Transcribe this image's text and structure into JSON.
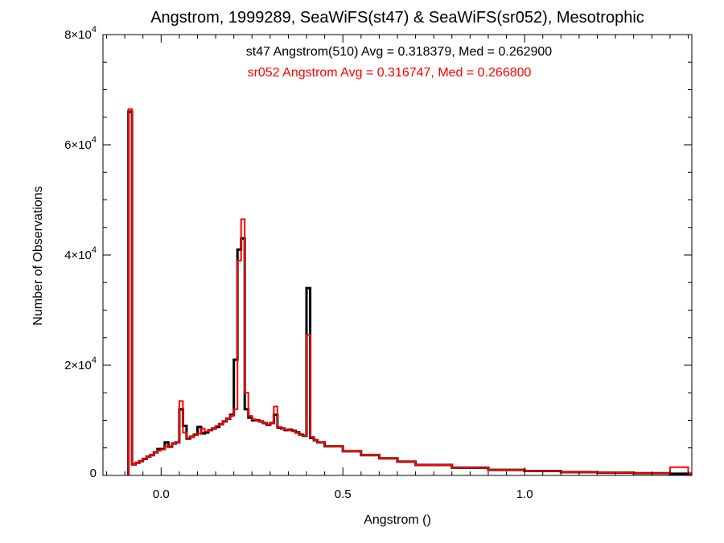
{
  "chart_data": {
    "type": "histogram",
    "title": "Angstrom, 1999289, SeaWiFS(st47) & SeaWiFS(sr052), Mesotrophic",
    "xlabel": "Angstrom ()",
    "ylabel": "Number of Observations",
    "xlim": [
      -0.16,
      1.46
    ],
    "ylim": [
      0,
      80000
    ],
    "x_ticks": [
      {
        "value": 0.0,
        "label": "0.0"
      },
      {
        "value": 0.5,
        "label": "0.5"
      },
      {
        "value": 1.0,
        "label": "1.0"
      }
    ],
    "y_ticks": [
      {
        "value": 0,
        "label": "0"
      },
      {
        "value": 20000,
        "mantissa": "2×10",
        "exponent": "4"
      },
      {
        "value": 40000,
        "mantissa": "4×10",
        "exponent": "4"
      },
      {
        "value": 60000,
        "mantissa": "6×10",
        "exponent": "4"
      },
      {
        "value": 80000,
        "mantissa": "8×10",
        "exponent": "4"
      }
    ],
    "bin_width": 0.01,
    "annotations": [
      {
        "text": "st47 Angstrom(510) Avg = 0.318379, Med = 0.262900",
        "color": "#000000"
      },
      {
        "text": "sr052 Angstrom Avg = 0.316747, Med = 0.266800",
        "color": "#ff0000"
      }
    ],
    "series": [
      {
        "color": "#000000",
        "x": [
          -0.09,
          -0.08,
          -0.07,
          -0.06,
          -0.05,
          -0.04,
          -0.03,
          -0.02,
          -0.01,
          0.0,
          0.01,
          0.02,
          0.03,
          0.04,
          0.05,
          0.06,
          0.07,
          0.08,
          0.09,
          0.1,
          0.11,
          0.12,
          0.13,
          0.14,
          0.15,
          0.16,
          0.17,
          0.18,
          0.19,
          0.2,
          0.21,
          0.22,
          0.23,
          0.24,
          0.25,
          0.26,
          0.27,
          0.28,
          0.29,
          0.3,
          0.31,
          0.32,
          0.33,
          0.34,
          0.35,
          0.36,
          0.37,
          0.38,
          0.39,
          0.4,
          0.41,
          0.42,
          0.43,
          0.45,
          0.5,
          0.55,
          0.6,
          0.65,
          0.7,
          0.8,
          0.9,
          1.0,
          1.1,
          1.2,
          1.3,
          1.4,
          1.45
        ],
        "values": [
          66000,
          2000,
          2300,
          2600,
          3000,
          3400,
          3700,
          4200,
          4800,
          4800,
          6000,
          5200,
          5800,
          6000,
          12000,
          9000,
          6700,
          7000,
          7400,
          8800,
          7600,
          7800,
          8200,
          8500,
          8800,
          9300,
          9800,
          10300,
          11000,
          21000,
          41000,
          43000,
          12000,
          10500,
          10000,
          10000,
          9800,
          9500,
          9200,
          9500,
          11000,
          8700,
          8500,
          8200,
          8300,
          8100,
          7800,
          7400,
          7200,
          34000,
          6800,
          6400,
          6000,
          5300,
          4400,
          3700,
          3100,
          2500,
          1900,
          1400,
          1000,
          800,
          600,
          500,
          400,
          300,
          300
        ]
      },
      {
        "color": "#ff0000",
        "x": [
          -0.09,
          -0.08,
          -0.07,
          -0.06,
          -0.05,
          -0.04,
          -0.03,
          -0.02,
          -0.01,
          0.0,
          0.01,
          0.02,
          0.03,
          0.04,
          0.05,
          0.06,
          0.07,
          0.08,
          0.09,
          0.1,
          0.11,
          0.12,
          0.13,
          0.14,
          0.15,
          0.16,
          0.17,
          0.18,
          0.19,
          0.2,
          0.21,
          0.22,
          0.23,
          0.24,
          0.25,
          0.26,
          0.27,
          0.28,
          0.29,
          0.3,
          0.31,
          0.32,
          0.33,
          0.34,
          0.35,
          0.36,
          0.37,
          0.38,
          0.39,
          0.4,
          0.41,
          0.42,
          0.43,
          0.45,
          0.5,
          0.55,
          0.6,
          0.65,
          0.7,
          0.8,
          0.9,
          1.0,
          1.1,
          1.2,
          1.3,
          1.4,
          1.45
        ],
        "values": [
          66500,
          2000,
          2300,
          2600,
          3000,
          3400,
          3700,
          4200,
          4500,
          4700,
          5300,
          5100,
          5800,
          6000,
          13500,
          7800,
          6800,
          7000,
          7300,
          7600,
          8500,
          8000,
          8200,
          8500,
          9000,
          9300,
          9800,
          10300,
          10800,
          12000,
          39000,
          46500,
          15000,
          10800,
          10200,
          10000,
          9800,
          9500,
          9300,
          9500,
          12500,
          8800,
          8500,
          8300,
          8200,
          8000,
          7700,
          7300,
          7200,
          25500,
          7000,
          6400,
          6000,
          5300,
          4400,
          3700,
          3100,
          2500,
          1900,
          1400,
          1000,
          800,
          600,
          500,
          400,
          1500,
          300
        ]
      }
    ]
  }
}
